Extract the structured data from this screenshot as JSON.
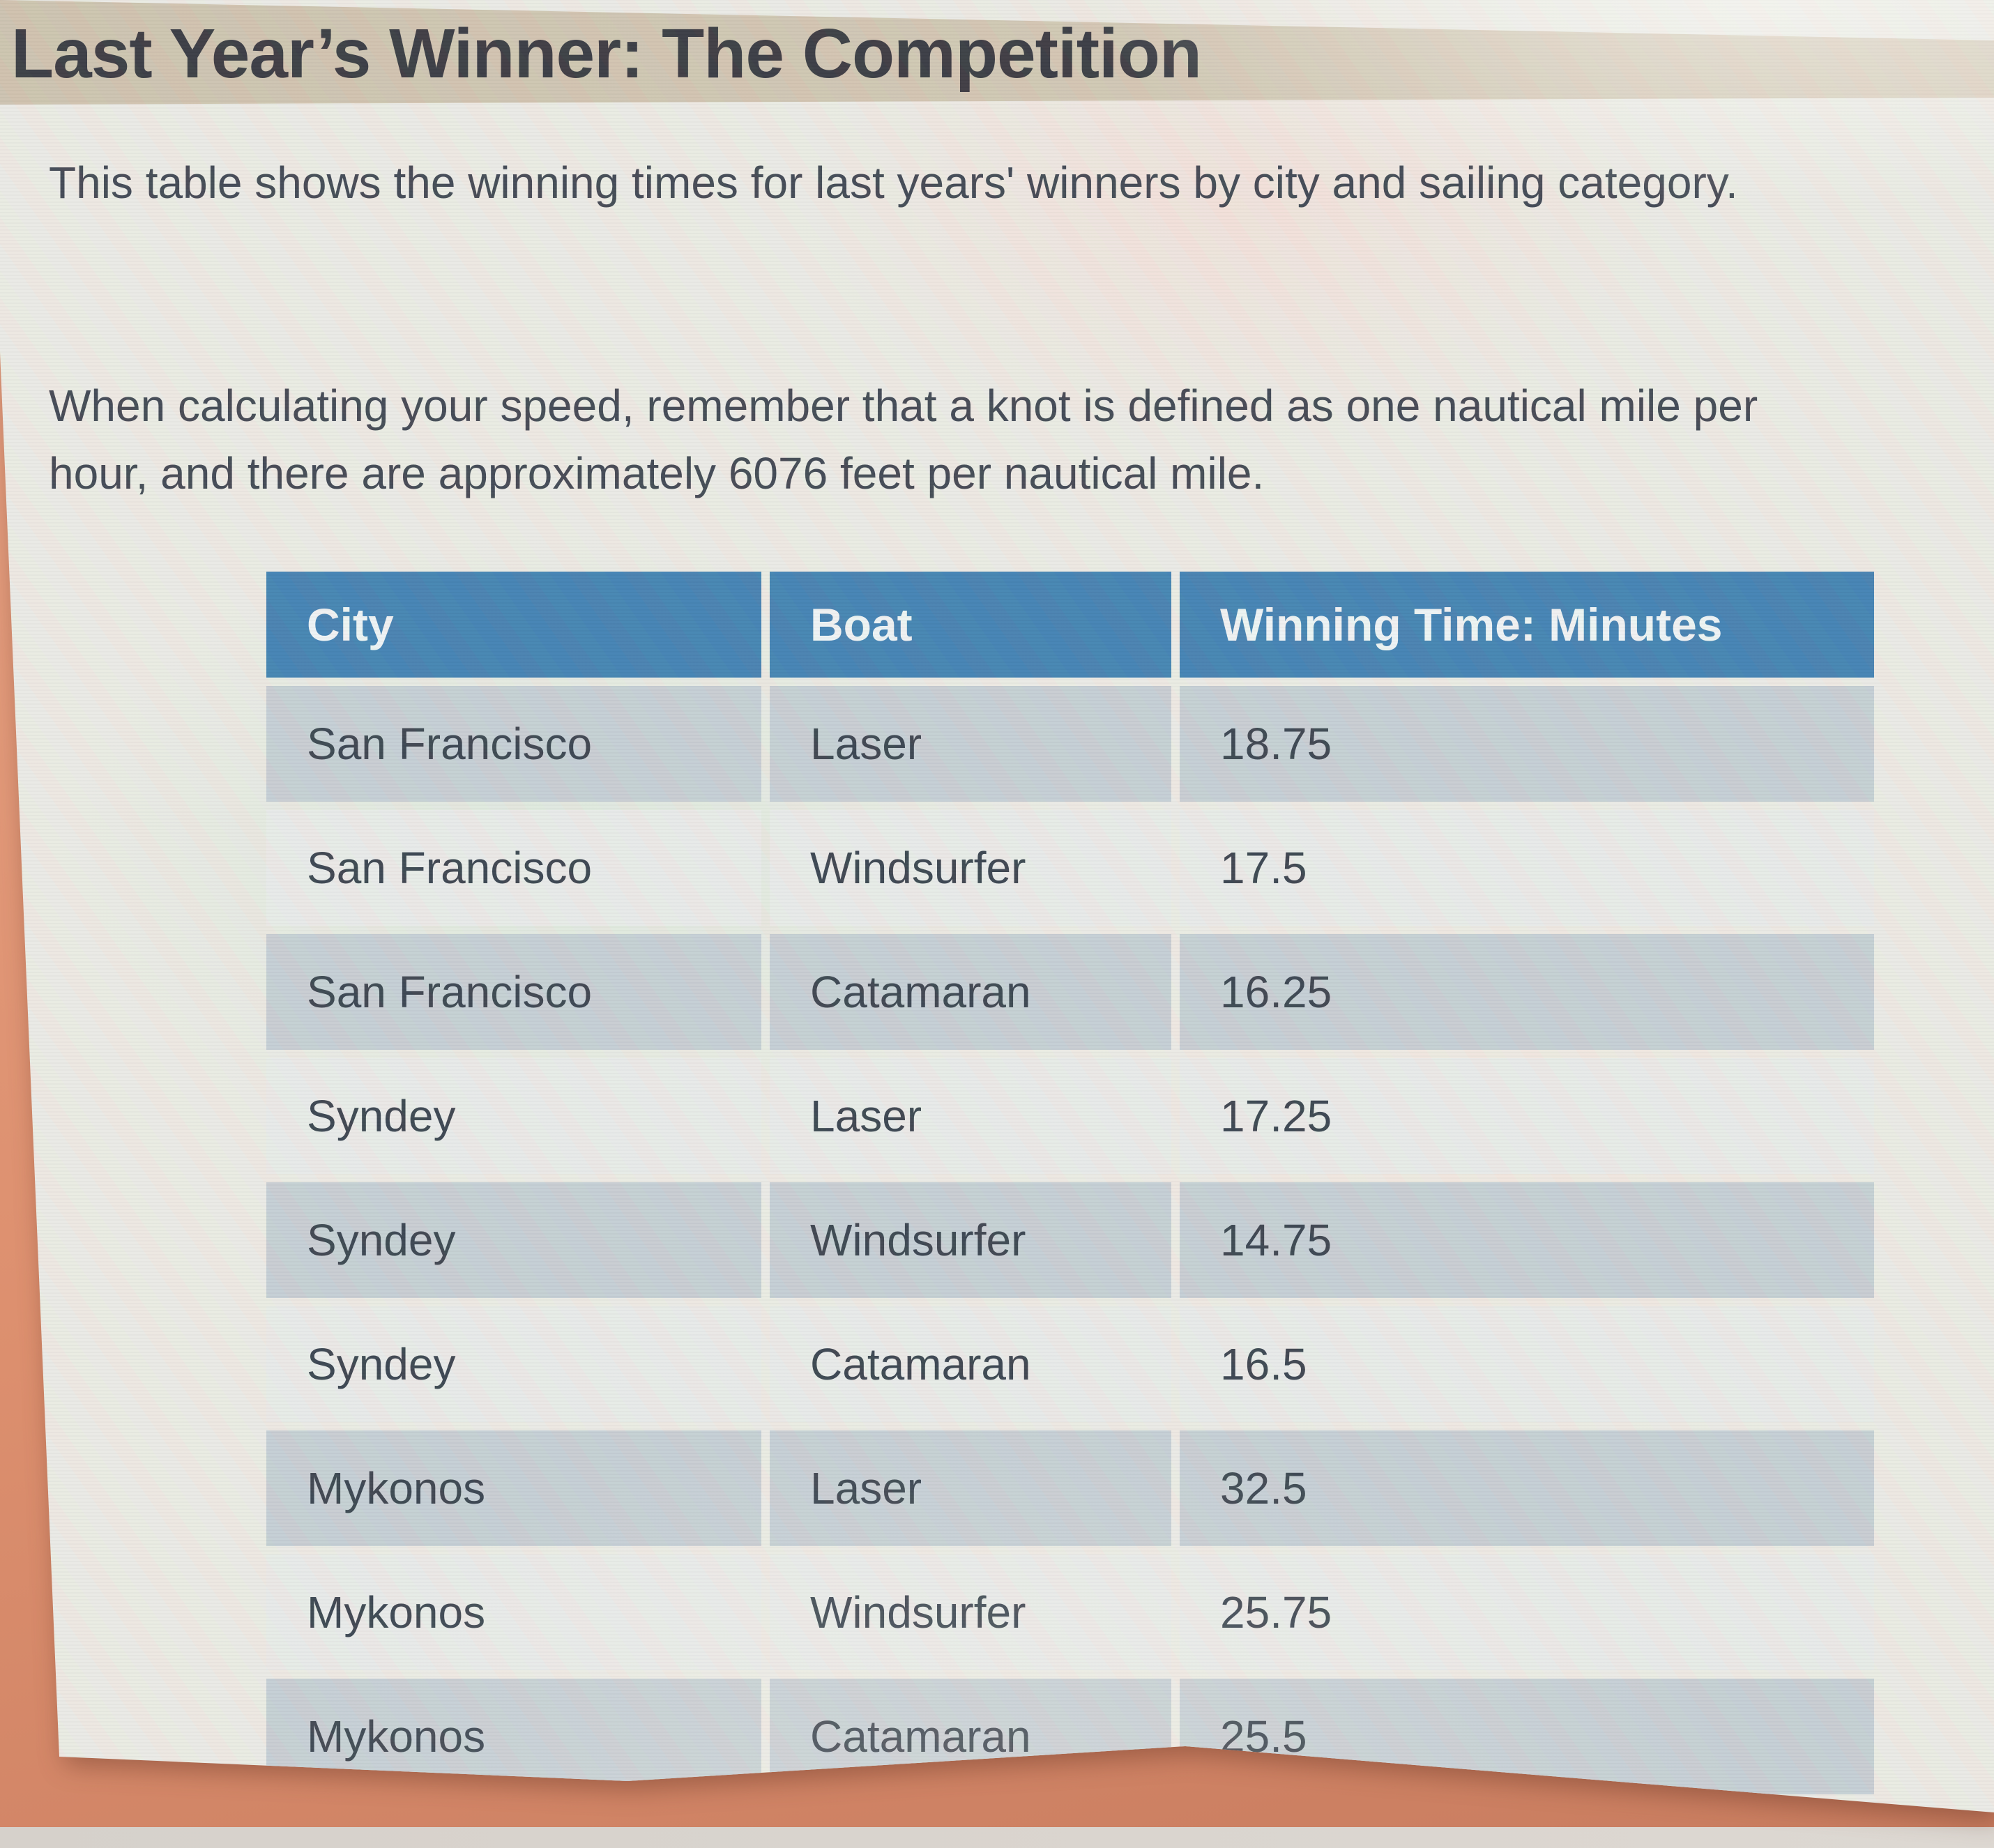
{
  "page": {
    "title": "Last Year’s Winner: The Competition",
    "intro": "This table shows the winning times for last years' winners by city and sailing category.",
    "note": "When calculating your speed, remember that a knot is defined as one nautical mile per hour, and there are approximately 6076 feet per nautical mile."
  },
  "chart_data": {
    "type": "table",
    "columns": [
      "City",
      "Boat",
      "Winning Time: Minutes"
    ],
    "rows": [
      [
        "San Francisco",
        "Laser",
        "18.75"
      ],
      [
        "San Francisco",
        "Windsurfer",
        "17.5"
      ],
      [
        "San Francisco",
        "Catamaran",
        "16.25"
      ],
      [
        "Syndey",
        "Laser",
        "17.25"
      ],
      [
        "Syndey",
        "Windsurfer",
        "14.75"
      ],
      [
        "Syndey",
        "Catamaran",
        "16.5"
      ],
      [
        "Mykonos",
        "Laser",
        "32.5"
      ],
      [
        "Mykonos",
        "Windsurfer",
        "25.75"
      ],
      [
        "Mykonos",
        "Catamaran",
        "25.5"
      ]
    ]
  },
  "colors": {
    "header_bg": "#3e7fb0",
    "shaded_row": "#c5ced3",
    "light_row": "#e9ebe8",
    "title_band": "#cdc2ad",
    "backdrop_salmon": "#dd906f",
    "panel": "#ecebe4"
  }
}
